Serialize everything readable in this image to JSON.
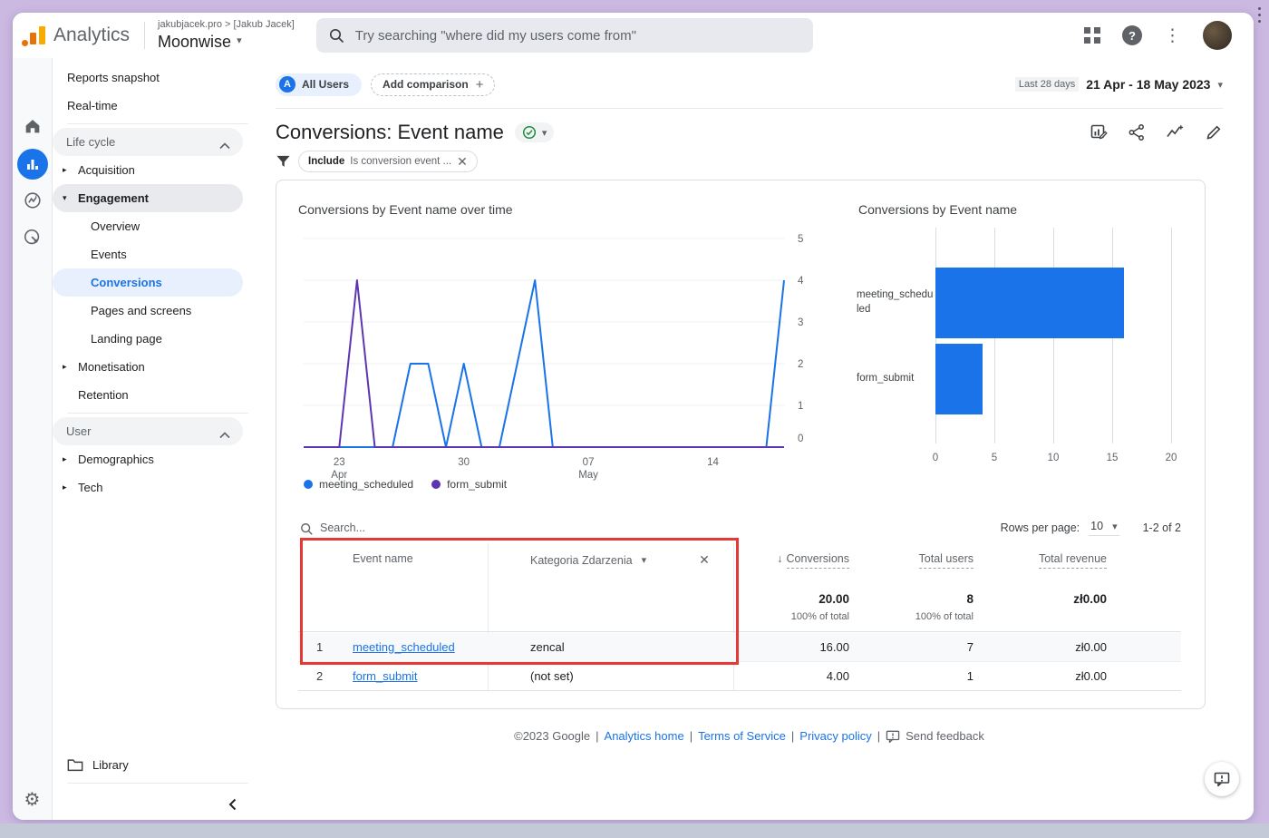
{
  "topbar": {
    "logo_text": "Analytics",
    "breadcrumb": "jakubjacek.pro > [Jakub Jacek]",
    "property_name": "Moonwise",
    "search_placeholder": "Try searching \"where did my users come from\"",
    "help_glyph": "?"
  },
  "sidebar": {
    "reports_snapshot": "Reports snapshot",
    "real_time": "Real-time",
    "life_cycle": "Life cycle",
    "acquisition": "Acquisition",
    "engagement": "Engagement",
    "overview": "Overview",
    "events": "Events",
    "conversions": "Conversions",
    "pages_and_screens": "Pages and screens",
    "landing_page": "Landing page",
    "monetisation": "Monetisation",
    "retention": "Retention",
    "user": "User",
    "demographics": "Demographics",
    "tech": "Tech",
    "library": "Library"
  },
  "header": {
    "segment_letter": "A",
    "segment_chip": "All Users",
    "add_comparison": "Add comparison",
    "add_plus": "+",
    "date_preset": "Last 28 days",
    "date_range": "21 Apr - 18 May 2023",
    "title": "Conversions: Event name",
    "filter_prefix": "Include",
    "filter_text": "Is conversion event ..."
  },
  "chart_data": [
    {
      "type": "line",
      "title": "Conversions by Event name over time",
      "x_start": "21 Apr 2023",
      "x_end": "18 May 2023",
      "num_days": 28,
      "ylim": [
        0,
        5
      ],
      "y_ticks": [
        0,
        1,
        2,
        3,
        4,
        5
      ],
      "x_ticks": [
        {
          "i": 2,
          "l1": "23",
          "l2": "Apr"
        },
        {
          "i": 9,
          "l1": "30",
          "l2": ""
        },
        {
          "i": 16,
          "l1": "07",
          "l2": "May"
        },
        {
          "i": 23,
          "l1": "14",
          "l2": ""
        }
      ],
      "series": [
        {
          "name": "meeting_scheduled",
          "color": "#1a73e8",
          "values": [
            0,
            0,
            0,
            0,
            0,
            0,
            2,
            2,
            0,
            2,
            0,
            0,
            2,
            4,
            0,
            0,
            0,
            0,
            0,
            0,
            0,
            0,
            0,
            0,
            0,
            0,
            0,
            4
          ]
        },
        {
          "name": "form_submit",
          "color": "#5e35b1",
          "values": [
            0,
            0,
            0,
            4,
            0,
            0,
            0,
            0,
            0,
            0,
            0,
            0,
            0,
            0,
            0,
            0,
            0,
            0,
            0,
            0,
            0,
            0,
            0,
            0,
            0,
            0,
            0,
            0
          ]
        }
      ],
      "legend_position": "bottom",
      "grid": true
    },
    {
      "type": "bar",
      "orientation": "horizontal",
      "title": "Conversions by Event name",
      "categories": [
        "meeting_scheduled",
        "form_submit"
      ],
      "values": [
        16,
        4
      ],
      "xlim": [
        0,
        20
      ],
      "x_ticks": [
        0,
        5,
        10,
        15,
        20
      ],
      "bar_color": "#1a73e8",
      "grid": true
    }
  ],
  "table": {
    "search_placeholder": "Search...",
    "rows_per_page_label": "Rows per page:",
    "rows_per_page_value": "10",
    "pagination": "1-2 of 2",
    "col_event_name": "Event name",
    "col_category": "Kategoria Zdarzenia",
    "col_conversions": "Conversions",
    "col_total_users": "Total users",
    "col_total_revenue": "Total revenue",
    "sort_glyph": "↓",
    "totals": {
      "conversions": "20.00",
      "conversions_pct": "100% of total",
      "users": "8",
      "users_pct": "100% of total",
      "revenue": "zł0.00"
    },
    "rows": [
      {
        "index": "1",
        "event_name": "meeting_scheduled",
        "category": "zencal",
        "conversions": "16.00",
        "users": "7",
        "revenue": "zł0.00"
      },
      {
        "index": "2",
        "event_name": "form_submit",
        "category": "(not set)",
        "conversions": "4.00",
        "users": "1",
        "revenue": "zł0.00"
      }
    ]
  },
  "footer": {
    "copyright": "©2023 Google",
    "separator": "|",
    "link_analytics_home": "Analytics home",
    "link_terms": "Terms of Service",
    "link_privacy": "Privacy policy",
    "send_feedback": "Send feedback"
  },
  "colors": {
    "accent_blue": "#1a73e8",
    "series_purple": "#5e35b1",
    "annotation_red": "#e53935",
    "logo_orange": "#f9ab00",
    "logo_orange_dark": "#e8710a",
    "frame_lavender": "#cbb9e2",
    "selected_bg": "#e8f0fe"
  }
}
